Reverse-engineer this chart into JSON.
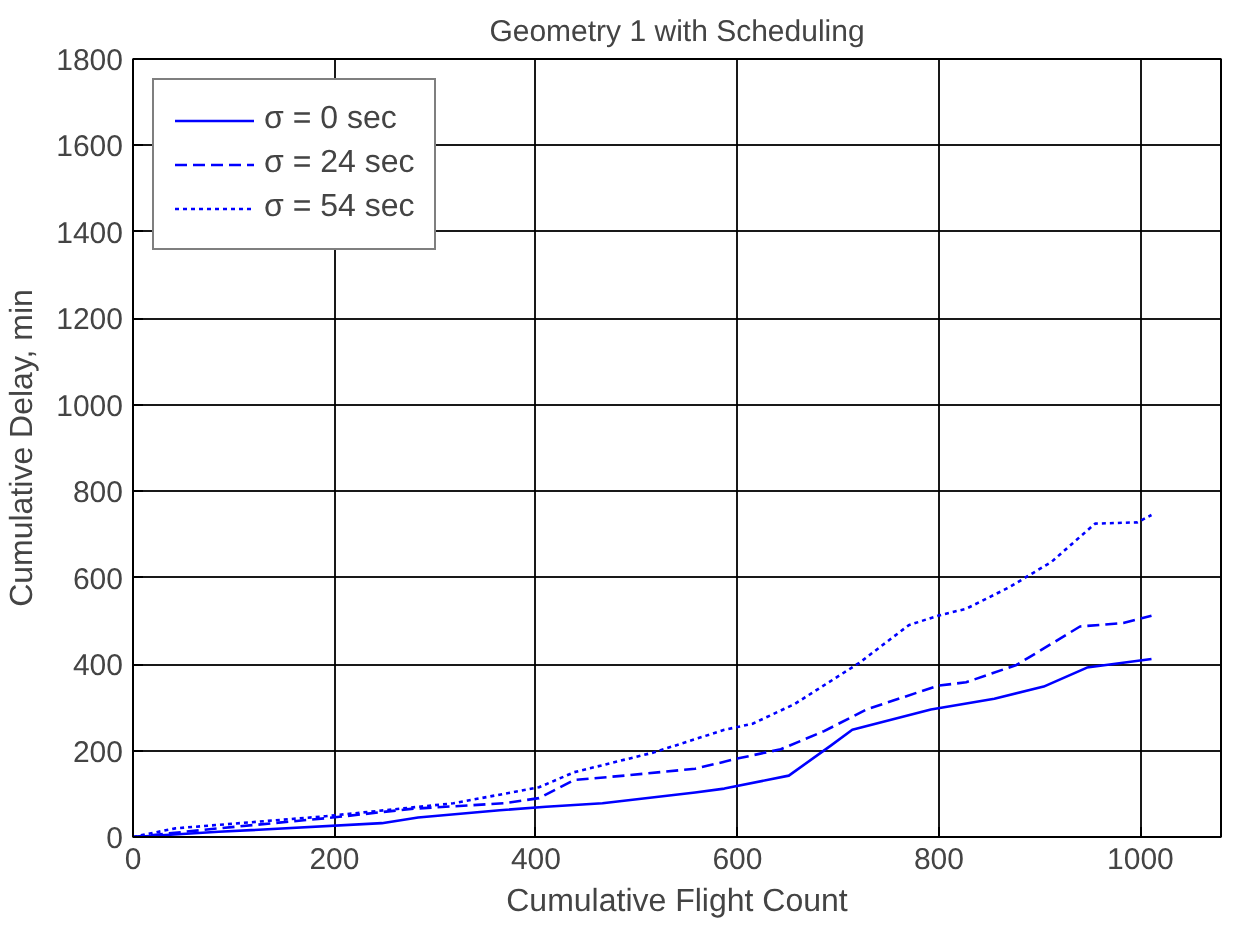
{
  "chart_data": {
    "type": "line",
    "title": "Geometry 1 with Scheduling",
    "xlabel": "Cumulative Flight Count",
    "ylabel": "Cumulative Delay, min",
    "xlim": [
      0,
      1080
    ],
    "ylim": [
      0,
      1800
    ],
    "xticks": [
      0,
      200,
      400,
      600,
      800,
      1000
    ],
    "yticks": [
      0,
      200,
      400,
      600,
      800,
      1000,
      1200,
      1400,
      1600,
      1800
    ],
    "grid": true,
    "legend": "top left",
    "marker": "none",
    "series": [
      {
        "name": "σ = 0 sec",
        "color": "#0000ff",
        "line_style": "solid",
        "x": [
          0,
          85,
          247,
          283,
          364,
          410,
          466,
          558,
          587,
          651,
          693,
          714,
          792,
          855,
          904,
          947,
          1011
        ],
        "values": [
          0,
          12,
          32,
          45,
          62,
          70,
          78,
          103,
          112,
          142,
          212,
          248,
          295,
          320,
          348,
          392,
          412
        ]
      },
      {
        "name": "σ = 24 sec",
        "color": "#0000ff",
        "line_style": "dashed",
        "x": [
          0,
          85,
          198,
          276,
          368,
          403,
          438,
          488,
          558,
          601,
          643,
          686,
          728,
          799,
          827,
          877,
          940,
          983,
          1011
        ],
        "values": [
          0,
          20,
          45,
          65,
          78,
          90,
          132,
          142,
          158,
          182,
          203,
          245,
          295,
          350,
          358,
          398,
          487,
          495,
          512
        ]
      },
      {
        "name": "σ = 54 sec",
        "color": "#0000ff",
        "line_style": "dotted",
        "x": [
          0,
          42,
          191,
          318,
          403,
          438,
          516,
          587,
          615,
          657,
          721,
          770,
          799,
          827,
          870,
          912,
          955,
          997,
          1011
        ],
        "values": [
          0,
          20,
          48,
          78,
          115,
          150,
          195,
          248,
          262,
          308,
          403,
          490,
          512,
          528,
          578,
          637,
          725,
          728,
          745
        ]
      }
    ]
  }
}
